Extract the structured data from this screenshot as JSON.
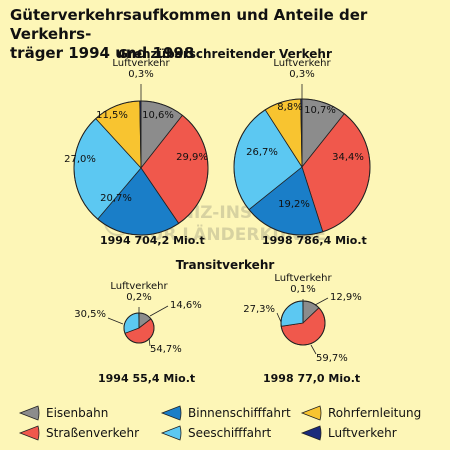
{
  "title_line1": "Güterverkehrsaufkommen und Anteile der Verkehrs-",
  "title_line2": "träger 1994 und 1998",
  "sections": {
    "cross_border": "Grenzüberschreitender Verkehr",
    "transit": "Transitverkehr"
  },
  "chart_data": {
    "type": "pie",
    "categories": [
      "Eisenbahn",
      "Straßenverkehr",
      "Binnenschifffahrt",
      "Seeschifffahrt",
      "Rohrfernleitung",
      "Luftverkehr"
    ],
    "colors": [
      "#8c8c8c",
      "#f0584c",
      "#1a7ec8",
      "#5cc8f2",
      "#f8c430",
      "#1a2b7c"
    ],
    "pies": [
      {
        "group": "Grenzüberschreitender Verkehr",
        "caption": "1994  704,2 Mio.t",
        "values": [
          10.6,
          29.9,
          20.7,
          27.0,
          11.5,
          0.3
        ],
        "labels": [
          "10,6%",
          "29,9%",
          "20,7%",
          "27,0%",
          "11,5%",
          "Luftverkehr\n0,3%"
        ]
      },
      {
        "group": "Grenzüberschreitender Verkehr",
        "caption": "1998  786,4 Mio.t",
        "values": [
          10.7,
          34.4,
          19.2,
          26.7,
          8.8,
          0.3
        ],
        "labels": [
          "10,7%",
          "34,4%",
          "19,2%",
          "26,7%",
          "8,8%",
          "Luftverkehr\n0,3%"
        ]
      },
      {
        "group": "Transitverkehr",
        "caption": "1994  55,4 Mio.t",
        "values": [
          14.6,
          54.7,
          0.0,
          30.5,
          0.0,
          0.2
        ],
        "labels": [
          "14,6%",
          "54,7%",
          "",
          "30,5%",
          "",
          "Luftverkehr\n0,2%"
        ]
      },
      {
        "group": "Transitverkehr",
        "caption": "1998  77,0 Mio.t",
        "values": [
          12.9,
          59.7,
          0.0,
          27.3,
          0.0,
          0.1
        ],
        "labels": [
          "12,9%",
          "59,7%",
          "",
          "27,3%",
          "",
          "Luftverkehr\n0,1%"
        ]
      }
    ]
  },
  "legend": [
    {
      "label": "Eisenbahn",
      "color": "#8c8c8c"
    },
    {
      "label": "Binnenschifffahrt",
      "color": "#1a7ec8"
    },
    {
      "label": "Rohrfernleitung",
      "color": "#f8c430"
    },
    {
      "label": "Straßenverkehr",
      "color": "#f0584c"
    },
    {
      "label": "Seeschifffahrt",
      "color": "#5cc8f2"
    },
    {
      "label": "Luftverkehr",
      "color": "#1a2b7c"
    }
  ],
  "watermark": {
    "line1": "LEIBNIZ-INSTITUT",
    "line2": "FÜR LÄNDERKUNDE"
  }
}
